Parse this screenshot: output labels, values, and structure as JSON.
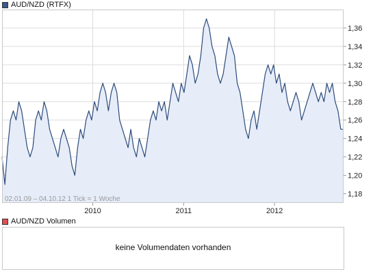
{
  "price_panel": {
    "legend": {
      "label": "AUD/NZD (RTFX)",
      "color": "#3a5a8c"
    },
    "footer_note": "02.01.09 – 04.10.12   1 Tick = 1 Woche"
  },
  "volume_panel": {
    "legend": {
      "label": "AUD/NZD Volumen",
      "color": "#e05050"
    },
    "message": "keine Volumendaten vorhanden"
  },
  "colors": {
    "line": "#2a4a7a",
    "area_fill": "#e6ecf8",
    "grid": "#dcdcdc",
    "frame": "#c8c8c8"
  },
  "chart_data": {
    "type": "area",
    "title": "AUD/NZD (RTFX)",
    "x_start": "2009-01-02",
    "x_end": "2012-10-04",
    "x_ticks": [
      "2010",
      "2011",
      "2012"
    ],
    "ylim": [
      1.17,
      1.38
    ],
    "y_ticks": [
      "1,18",
      "1,20",
      "1,22",
      "1,24",
      "1,26",
      "1,28",
      "1,30",
      "1,32",
      "1,34",
      "1,36"
    ],
    "y_axis_side": "right",
    "grid": true,
    "series": [
      {
        "values": [
          1.22,
          1.19,
          1.23,
          1.26,
          1.27,
          1.26,
          1.28,
          1.27,
          1.25,
          1.23,
          1.22,
          1.23,
          1.26,
          1.27,
          1.26,
          1.28,
          1.27,
          1.25,
          1.24,
          1.23,
          1.22,
          1.24,
          1.25,
          1.24,
          1.23,
          1.21,
          1.2,
          1.23,
          1.25,
          1.24,
          1.26,
          1.27,
          1.26,
          1.28,
          1.27,
          1.29,
          1.3,
          1.29,
          1.27,
          1.29,
          1.3,
          1.29,
          1.26,
          1.25,
          1.24,
          1.23,
          1.25,
          1.23,
          1.22,
          1.24,
          1.23,
          1.22,
          1.24,
          1.26,
          1.27,
          1.26,
          1.28,
          1.27,
          1.28,
          1.26,
          1.28,
          1.3,
          1.29,
          1.28,
          1.3,
          1.29,
          1.31,
          1.33,
          1.32,
          1.3,
          1.31,
          1.33,
          1.36,
          1.37,
          1.36,
          1.34,
          1.33,
          1.31,
          1.3,
          1.31,
          1.33,
          1.35,
          1.34,
          1.33,
          1.3,
          1.29,
          1.27,
          1.25,
          1.24,
          1.26,
          1.27,
          1.25,
          1.27,
          1.29,
          1.31,
          1.32,
          1.31,
          1.32,
          1.3,
          1.31,
          1.29,
          1.3,
          1.28,
          1.27,
          1.28,
          1.29,
          1.28,
          1.26,
          1.27,
          1.28,
          1.29,
          1.3,
          1.29,
          1.28,
          1.29,
          1.28,
          1.3,
          1.29,
          1.3,
          1.28,
          1.27,
          1.25,
          1.25
        ]
      }
    ]
  }
}
